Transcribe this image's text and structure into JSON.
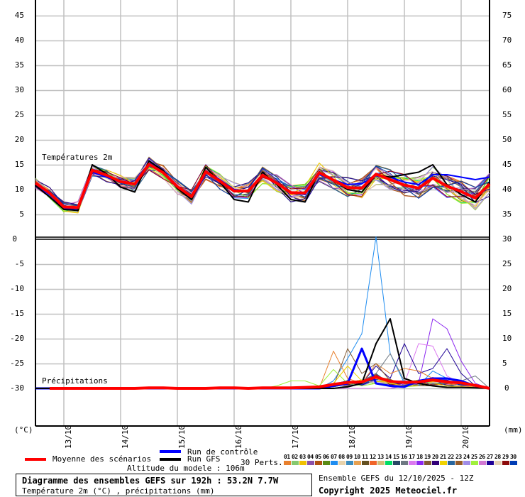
{
  "header": {
    "title": "Diagramme des ensembles GEFS sur 192h : 53.2N 7.7W",
    "subtitle": "Température 2m (°C) , précipitations (mm)",
    "run_info": "Ensemble GEFS du 12/10/2025 - 12Z",
    "copyright": "Copyright 2025 Meteociel.fr",
    "altitude": "Altitude du modele : 106m"
  },
  "legend": {
    "mean_label": "Moyenne des scénarios",
    "control_label": "Run de contrôle",
    "gfs_label": "Run GFS",
    "perts_label": "30 Perts.",
    "mean_color": "#ff0000",
    "control_color": "#0000ff",
    "gfs_color": "#000000",
    "perturbations": [
      {
        "id": "01",
        "color": "#e8802e"
      },
      {
        "id": "02",
        "color": "#86c86e"
      },
      {
        "id": "03",
        "color": "#f0c000"
      },
      {
        "id": "04",
        "color": "#8c50a8"
      },
      {
        "id": "05",
        "color": "#b05010"
      },
      {
        "id": "06",
        "color": "#5a8a14"
      },
      {
        "id": "07",
        "color": "#1e8cf0"
      },
      {
        "id": "08",
        "color": "#e8d2aa"
      },
      {
        "id": "09",
        "color": "#3c8cbe"
      },
      {
        "id": "10",
        "color": "#e6a050"
      },
      {
        "id": "11",
        "color": "#645020"
      },
      {
        "id": "12",
        "color": "#f06428"
      },
      {
        "id": "13",
        "color": "#d2be78"
      },
      {
        "id": "14",
        "color": "#00dc64"
      },
      {
        "id": "15",
        "color": "#284664"
      },
      {
        "id": "16",
        "color": "#6e7882"
      },
      {
        "id": "17",
        "color": "#dc78f0"
      },
      {
        "id": "18",
        "color": "#8c28f0"
      },
      {
        "id": "19",
        "color": "#825a32"
      },
      {
        "id": "20",
        "color": "#320078"
      },
      {
        "id": "21",
        "color": "#f0d200"
      },
      {
        "id": "22",
        "color": "#28649c"
      },
      {
        "id": "23",
        "color": "#965a28"
      },
      {
        "id": "24",
        "color": "#a08ce6"
      },
      {
        "id": "25",
        "color": "#a0f03c"
      },
      {
        "id": "26",
        "color": "#d278d2"
      },
      {
        "id": "27",
        "color": "#1e0096"
      },
      {
        "id": "28",
        "color": "#e6d2b4"
      },
      {
        "id": "29",
        "color": "#8c0a0a"
      },
      {
        "id": "30",
        "color": "#003cb4"
      }
    ]
  },
  "chart_data": [
    {
      "type": "line",
      "title": "Températures 2m",
      "ylabel": "(°C)",
      "ylim": [
        -35,
        45
      ],
      "yticks": [
        45,
        40,
        35,
        30,
        25,
        20,
        15,
        10,
        5,
        0,
        -5,
        -10,
        -15,
        -20,
        -25,
        -30
      ],
      "x_step_hours": 6,
      "x_range_hours": [
        0,
        192
      ],
      "xtick_labels": [
        "13/10",
        "14/10",
        "15/10",
        "16/10",
        "17/10",
        "18/10",
        "19/10",
        "20/10"
      ],
      "xtick_index": [
        2,
        6,
        10,
        14,
        18,
        22,
        26,
        30
      ],
      "grid": true,
      "series": [
        {
          "name": "Moyenne des scénarios",
          "color": "#ff0000",
          "values": [
            11.3,
            9.3,
            6.5,
            6.4,
            13.9,
            12.9,
            11.6,
            11.1,
            15.1,
            13.4,
            10.6,
            8.6,
            13.6,
            11.7,
            9.7,
            9.7,
            12.9,
            11.3,
            9.4,
            9.3,
            13.4,
            11.9,
            10.4,
            10.3,
            13.1,
            12.0,
            10.9,
            10.3,
            12.3,
            10.7,
            9.6,
            8.3,
            11.1
          ]
        },
        {
          "name": "Run GFS",
          "color": "#000000",
          "values": [
            10.8,
            8.5,
            6.0,
            5.8,
            15.0,
            13.2,
            10.5,
            9.5,
            15.8,
            13.8,
            10.2,
            8.0,
            14.5,
            11.5,
            8.0,
            7.5,
            13.5,
            11.0,
            8.0,
            7.5,
            13.6,
            11.8,
            10.0,
            9.5,
            13.0,
            12.5,
            13.0,
            13.5,
            15.0,
            11.0,
            9.0,
            7.5,
            11.5
          ]
        },
        {
          "name": "Run de contrôle",
          "color": "#0000ff",
          "values": [
            11.0,
            9.0,
            6.2,
            5.9,
            13.5,
            12.5,
            11.5,
            11.0,
            15.3,
            13.5,
            10.5,
            8.5,
            13.8,
            12.0,
            10.0,
            9.5,
            13.0,
            11.5,
            9.5,
            9.0,
            13.0,
            12.0,
            11.0,
            11.2,
            12.8,
            12.5,
            11.5,
            11.0,
            13.0,
            13.0,
            12.5,
            12.0,
            12.5
          ]
        }
      ]
    },
    {
      "type": "line",
      "title": "Précipitations",
      "ylabel": "(mm)",
      "ylim": [
        0,
        30
      ],
      "yticks": [
        30,
        25,
        20,
        15,
        10,
        5,
        0
      ],
      "x_step_hours": 6,
      "grid": true,
      "series": [
        {
          "name": "Moyenne des scénarios",
          "color": "#ff0000",
          "values": [
            0,
            0,
            0,
            0,
            0,
            0,
            0,
            0,
            0.1,
            0.1,
            0,
            0,
            0,
            0.1,
            0.1,
            0,
            0.1,
            0.1,
            0.1,
            0.2,
            0.3,
            0.8,
            1.2,
            1.3,
            2.3,
            1.4,
            1.2,
            1.3,
            1.7,
            1.3,
            1.1,
            0.6,
            0
          ]
        },
        {
          "name": "Run GFS",
          "color": "#000000",
          "values": [
            0,
            0,
            0,
            0,
            0,
            0,
            0,
            0,
            0,
            0,
            0,
            0,
            0,
            0,
            0,
            0,
            0,
            0,
            0,
            0,
            0,
            0,
            0.3,
            1.0,
            9.0,
            14.0,
            2.0,
            1.0,
            0.5,
            0.2,
            0.2,
            0.1,
            0
          ]
        },
        {
          "name": "Run de contrôle",
          "color": "#0000ff",
          "values": [
            0,
            0,
            0,
            0,
            0,
            0,
            0,
            0,
            0,
            0,
            0,
            0,
            0,
            0,
            0,
            0,
            0,
            0,
            0,
            0,
            0,
            0.5,
            1.0,
            8.0,
            1.0,
            0.5,
            0.3,
            1.5,
            2.0,
            2.0,
            1.5,
            0.5,
            0
          ]
        },
        {
          "name": "Pert 07 (peak)",
          "color": "#1e8cf0",
          "values": [
            0,
            0,
            0,
            0,
            0,
            0,
            0,
            0,
            0,
            0,
            0,
            0,
            0,
            0,
            0,
            0,
            0,
            0,
            0,
            0,
            0,
            1.5,
            6.0,
            11.0,
            30.5,
            7.0,
            1.0,
            0.5,
            3.5,
            2.0,
            1.0,
            0.5,
            0
          ]
        },
        {
          "name": "Pert 18",
          "color": "#8c28f0",
          "values": [
            0,
            0,
            0,
            0,
            0,
            0,
            0,
            0,
            0,
            0,
            0,
            0,
            0,
            0,
            0,
            0,
            0,
            0,
            0,
            0,
            0,
            0,
            0,
            0,
            0,
            0,
            0.5,
            1.0,
            14.0,
            12.0,
            5.5,
            1.0,
            0
          ]
        },
        {
          "name": "Pert 17",
          "color": "#dc78f0",
          "values": [
            0,
            0,
            0,
            0,
            0,
            0,
            0,
            0,
            0,
            0,
            0,
            0,
            0,
            0,
            0,
            0,
            0,
            0,
            0,
            0,
            0,
            0,
            0,
            0,
            0,
            0,
            1.0,
            9.0,
            8.5,
            2.5,
            1.0,
            0.5,
            0
          ]
        },
        {
          "name": "Pert 27",
          "color": "#1e0096",
          "values": [
            0,
            0,
            0,
            0,
            0,
            0,
            0,
            0,
            0,
            0,
            0,
            0,
            0,
            0,
            0,
            0,
            0,
            0,
            0,
            0,
            0,
            0,
            0.5,
            1.0,
            4.5,
            2.0,
            9.0,
            3.0,
            4.0,
            8.0,
            3.0,
            0.5,
            0
          ]
        },
        {
          "name": "Pert 01",
          "color": "#e8802e",
          "values": [
            0,
            0,
            0,
            0,
            0,
            0,
            0,
            0,
            0,
            0,
            0,
            0,
            0,
            0,
            0,
            0,
            0,
            0,
            0,
            0,
            0,
            7.5,
            2.0,
            1.0,
            5.0,
            3.0,
            4.0,
            3.5,
            2.0,
            1.0,
            0.5,
            0.2,
            0
          ]
        },
        {
          "name": "Pert 25",
          "color": "#a0f03c",
          "values": [
            0,
            0,
            0,
            0,
            0,
            0,
            0,
            0,
            0,
            0,
            0,
            0,
            0,
            0,
            0,
            0,
            0,
            0.5,
            1.5,
            1.5,
            0.5,
            3.8,
            1.0,
            0.5,
            1.0,
            0.5,
            0.3,
            0.5,
            0.5,
            0.3,
            0.2,
            0.1,
            0
          ]
        },
        {
          "name": "Pert 19",
          "color": "#825a32",
          "values": [
            0,
            0,
            0,
            0,
            0,
            0,
            0,
            0,
            0,
            0,
            0,
            0,
            0,
            0,
            0,
            0,
            0,
            0,
            0,
            0,
            0,
            0.5,
            8.0,
            3.0,
            5.0,
            1.5,
            1.0,
            0.5,
            0.5,
            0.3,
            0.2,
            0.1,
            0
          ]
        },
        {
          "name": "Pert 21",
          "color": "#f0d200",
          "values": [
            0,
            0,
            0,
            0,
            0,
            0,
            0,
            0,
            0,
            0,
            0,
            0,
            0,
            0,
            0,
            0,
            0,
            0,
            0,
            0,
            0,
            1.0,
            4.5,
            1.5,
            2.0,
            1.0,
            0.5,
            0.5,
            1.0,
            0.5,
            0.3,
            0.1,
            0
          ]
        },
        {
          "name": "Pert 16",
          "color": "#6e7882",
          "values": [
            0,
            0,
            0,
            0,
            0,
            0,
            0,
            0,
            0,
            0,
            0,
            0,
            0,
            0,
            0,
            0,
            0,
            0,
            0,
            0,
            0,
            0,
            0.5,
            1.5,
            3.0,
            7.0,
            1.5,
            0.5,
            1.0,
            1.0,
            1.5,
            2.5,
            0
          ]
        }
      ]
    }
  ],
  "axes": {
    "left_unit": "(°C)",
    "right_unit": "(mm)",
    "temp_label": "Températures 2m",
    "precip_label": "Précipitations",
    "left_ticks": [
      "45",
      "40",
      "35",
      "30",
      "25",
      "20",
      "15",
      "10",
      "5",
      "0",
      "-5",
      "-10",
      "-15",
      "-20",
      "-25",
      "-30"
    ],
    "right_ticks": [
      "75",
      "70",
      "65",
      "60",
      "55",
      "50",
      "45",
      "40",
      "35",
      "30",
      "25",
      "20",
      "15",
      "10",
      "5",
      "0"
    ],
    "x_labels": [
      "13/10",
      "14/10",
      "15/10",
      "16/10",
      "17/10",
      "18/10",
      "19/10",
      "20/10"
    ]
  }
}
